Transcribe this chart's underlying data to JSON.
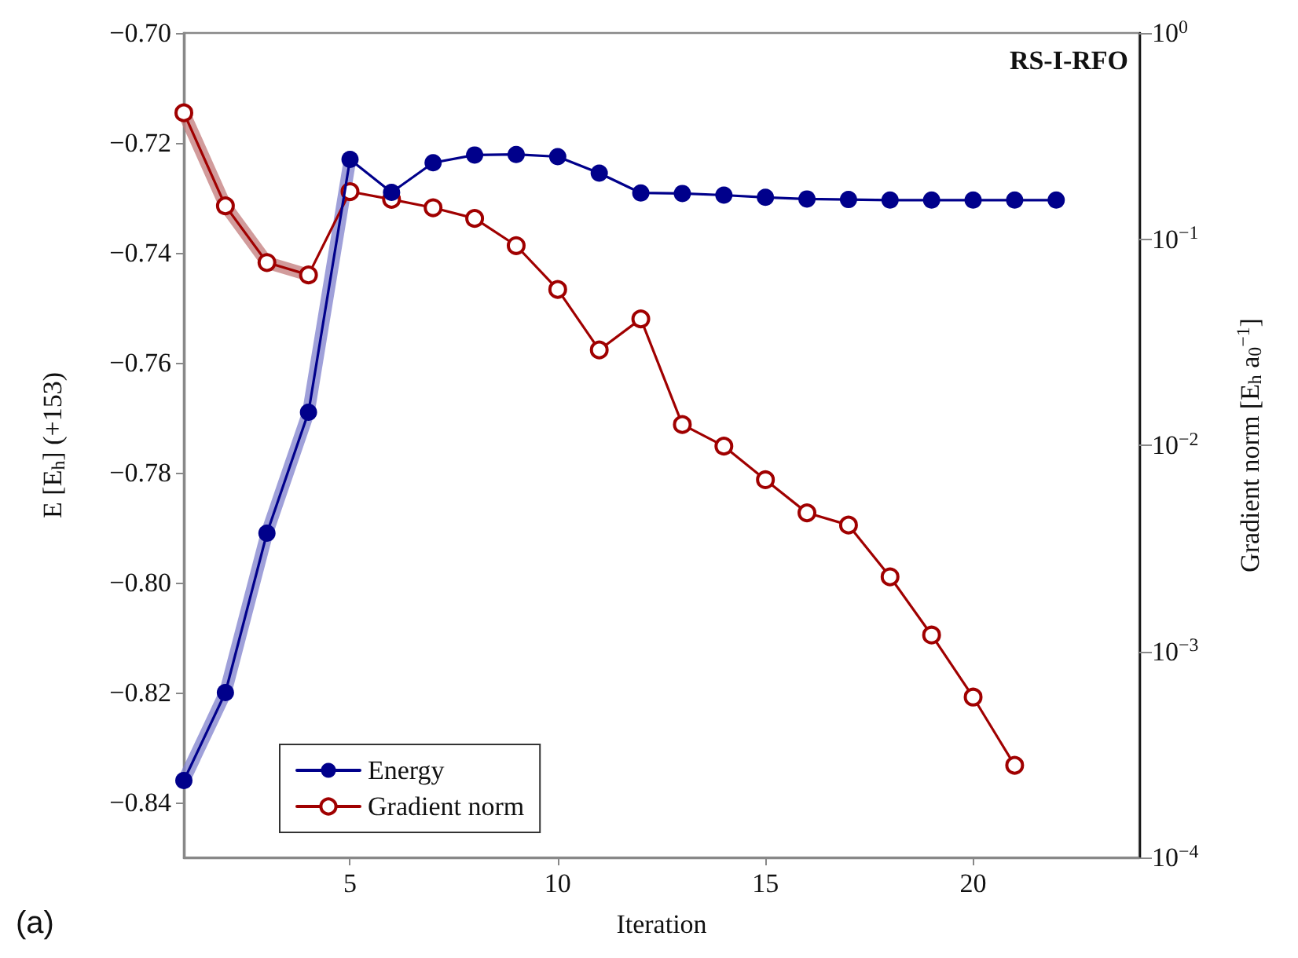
{
  "chart_data": {
    "type": "line",
    "xlabel": "Iteration",
    "ylabel": "E [E$_{h}$] (+153)",
    "y2label": "Gradient norm [E$_{h}$ a$_{0}$$^{−1}$]",
    "annotations": [
      "RS-I-RFO",
      "(a)"
    ],
    "xlim": [
      1,
      24
    ],
    "xticks": [
      5,
      10,
      15,
      20
    ],
    "ylim": [
      -0.85,
      -0.7
    ],
    "yticks": [
      {
        "value": -0.84,
        "label": "−0.84"
      },
      {
        "value": -0.82,
        "label": "−0.82"
      },
      {
        "value": -0.8,
        "label": "−0.80"
      },
      {
        "value": -0.78,
        "label": "−0.78"
      },
      {
        "value": -0.76,
        "label": "−0.76"
      },
      {
        "value": -0.74,
        "label": "−0.74"
      },
      {
        "value": -0.72,
        "label": "−0.72"
      },
      {
        "value": -0.7,
        "label": "−0.70"
      }
    ],
    "y2lim": [
      0.0001,
      1
    ],
    "y2ticks": [
      {
        "value": 0.0001,
        "label": "10$^{−4}$"
      },
      {
        "value": 0.001,
        "label": "10$^{−3}$"
      },
      {
        "value": 0.01,
        "label": "10$^{−2}$"
      },
      {
        "value": 0.1,
        "label": "10$^{−1}$"
      },
      {
        "value": 1,
        "label": "10$^{0}$"
      }
    ],
    "log": "y2",
    "grid": false,
    "legend": "bottom left",
    "marker": "circle",
    "line_style": "solid",
    "series": [
      {
        "color": "#7f80cc",
        "marker": "none",
        "x": [
          1,
          2,
          3,
          4,
          5
        ],
        "values": [
          -0.836,
          -0.82,
          -0.791,
          -0.769,
          -0.723
        ]
      },
      {
        "color": "#c27a7a",
        "marker": "none",
        "axis": "y2",
        "x": [
          1,
          2,
          3,
          4
        ],
        "values": [
          0.41,
          0.145,
          0.077,
          0.067
        ]
      },
      {
        "name": "Energy",
        "color": "#00008b",
        "x": [
          1,
          2,
          3,
          4,
          5,
          6,
          7,
          8,
          9,
          10,
          11,
          12,
          13,
          14,
          15,
          16,
          17,
          18,
          19,
          20,
          21,
          22
        ],
        "values": [
          -0.836,
          -0.82,
          -0.791,
          -0.769,
          -0.723,
          -0.729,
          -0.7236,
          -0.7222,
          -0.7221,
          -0.7225,
          -0.7255,
          -0.7291,
          -0.7292,
          -0.7295,
          -0.7299,
          -0.7302,
          -0.7303,
          -0.7304,
          -0.7304,
          -0.7304,
          -0.7304,
          -0.7304
        ]
      },
      {
        "name": "Gradient norm",
        "color": "#a00000",
        "axis": "y2",
        "x": [
          1,
          2,
          3,
          4,
          5,
          6,
          7,
          8,
          9,
          10,
          11,
          12,
          13,
          14,
          15,
          16,
          17,
          18,
          19,
          20,
          21
        ],
        "values": [
          0.41,
          0.145,
          0.077,
          0.067,
          0.17,
          0.156,
          0.142,
          0.126,
          0.093,
          0.057,
          0.029,
          0.041,
          0.0126,
          0.0099,
          0.0068,
          0.0047,
          0.0041,
          0.0023,
          0.0012,
          0.0006,
          0.00028
        ]
      }
    ]
  }
}
